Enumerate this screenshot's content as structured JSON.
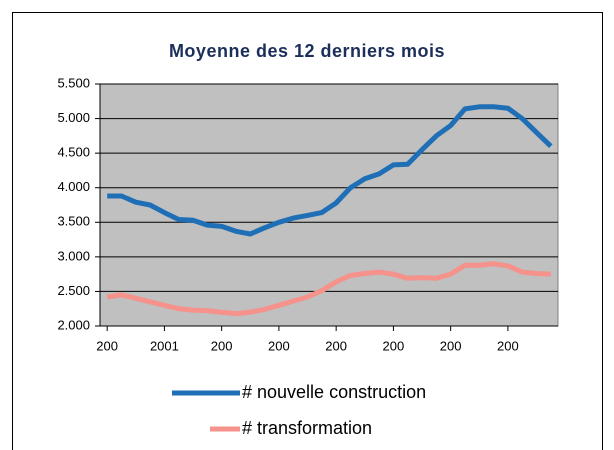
{
  "chart_data": {
    "type": "line",
    "title": "Moyenne des 12 derniers mois",
    "categories": [
      "200",
      null,
      null,
      null,
      "2001",
      null,
      null,
      null,
      "200",
      null,
      null,
      null,
      "200",
      null,
      null,
      null,
      "200",
      null,
      null,
      null,
      "200",
      null,
      null,
      null,
      "200",
      null,
      null,
      null,
      "200",
      null,
      null,
      null
    ],
    "series": [
      {
        "name": "# nouvelle construction",
        "color": "#1f6fb6",
        "values": [
          3880,
          3880,
          3790,
          3750,
          3640,
          3540,
          3530,
          3460,
          3440,
          3370,
          3330,
          3420,
          3500,
          3560,
          3600,
          3640,
          3780,
          4000,
          4130,
          4200,
          4330,
          4340,
          4550,
          4750,
          4900,
          5140,
          5170,
          5170,
          5150,
          5000,
          4800,
          4600
        ]
      },
      {
        "name": "# transformation",
        "color": "#f4928b",
        "values": [
          2420,
          2450,
          2400,
          2350,
          2300,
          2250,
          2230,
          2220,
          2200,
          2180,
          2200,
          2240,
          2300,
          2360,
          2420,
          2510,
          2640,
          2730,
          2760,
          2780,
          2750,
          2690,
          2700,
          2690,
          2750,
          2880,
          2880,
          2900,
          2870,
          2780,
          2760,
          2750
        ]
      }
    ],
    "ylim": [
      2000,
      5500
    ],
    "yticks": [
      {
        "value": 2000,
        "label": "2.000"
      },
      {
        "value": 2500,
        "label": "2.500"
      },
      {
        "value": 3000,
        "label": "3.000"
      },
      {
        "value": 3500,
        "label": "3.500"
      },
      {
        "value": 4000,
        "label": "4.000"
      },
      {
        "value": 4500,
        "label": "4.500"
      },
      {
        "value": 5000,
        "label": "5.000"
      },
      {
        "value": 5500,
        "label": "5.500"
      }
    ],
    "grid": true
  }
}
